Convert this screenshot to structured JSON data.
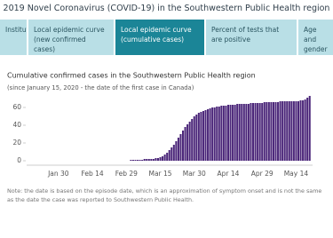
{
  "header": {
    "title": "2019 Novel Coronavirus (COVID-19) in the Southwestern Public Health region"
  },
  "tabs": [
    "Institutional...",
    "Local epidemic curve (new confirmed cases)",
    "Local epidemic curve (cumulative cases)",
    "Percent of tests that are positive",
    "Age and gender d..."
  ],
  "chart_data": {
    "type": "bar",
    "title": "Cumulative confirmed cases in the Southwestern Public Health region",
    "subtitle": "(since January 15, 2020 - the date of the first case in Canada)",
    "color": "#4b2679",
    "categories": [
      null,
      null,
      null,
      null,
      null,
      null,
      null,
      null,
      null,
      null,
      null,
      null,
      "Jan 30",
      null,
      null,
      null,
      null,
      null,
      null,
      null,
      null,
      null,
      null,
      null,
      null,
      null,
      null,
      "Feb 14",
      null,
      null,
      null,
      null,
      null,
      null,
      null,
      null,
      null,
      null,
      null,
      null,
      null,
      null,
      "Feb 29",
      null,
      null,
      null,
      null,
      null,
      null,
      null,
      null,
      null,
      null,
      null,
      null,
      null,
      null,
      "Mar 15",
      null,
      null,
      null,
      null,
      null,
      null,
      null,
      null,
      null,
      null,
      null,
      null,
      null,
      null,
      "Mar 30",
      null,
      null,
      null,
      null,
      null,
      null,
      null,
      null,
      null,
      null,
      null,
      null,
      null,
      null,
      "Apr 14",
      null,
      null,
      null,
      null,
      null,
      null,
      null,
      null,
      null,
      null,
      null,
      null,
      null,
      null,
      "Apr 29",
      null,
      null,
      null,
      null,
      null,
      null,
      null,
      null,
      null,
      null,
      null,
      null,
      null,
      null,
      "May 14",
      null,
      null,
      null,
      null,
      null,
      null
    ],
    "values": [
      null,
      null,
      null,
      null,
      null,
      null,
      null,
      null,
      null,
      null,
      null,
      null,
      null,
      null,
      null,
      null,
      null,
      null,
      null,
      null,
      null,
      null,
      null,
      null,
      null,
      null,
      null,
      null,
      null,
      null,
      null,
      null,
      null,
      null,
      null,
      null,
      null,
      null,
      null,
      null,
      null,
      null,
      null,
      null,
      1,
      1,
      1,
      1,
      1,
      1,
      2,
      2,
      2,
      2,
      2,
      3,
      3,
      4,
      5,
      7,
      9,
      12,
      15,
      18,
      22,
      26,
      30,
      34,
      38,
      41,
      44,
      47,
      50,
      52,
      54,
      55,
      56,
      57,
      58,
      59,
      60,
      60,
      61,
      61,
      62,
      62,
      62,
      63,
      63,
      63,
      63,
      64,
      64,
      64,
      64,
      64,
      64,
      65,
      65,
      65,
      65,
      65,
      65,
      66,
      66,
      66,
      66,
      66,
      66,
      66,
      67,
      67,
      67,
      67,
      67,
      67,
      67,
      67,
      67,
      68,
      68,
      69,
      71,
      73
    ],
    "ylim": [
      -5,
      75
    ],
    "yticks": [
      0,
      20,
      40,
      60
    ]
  },
  "footnote": "Note: the date is based on the episode date, which is an approximation of symptom onset and is not the same as the date the case was reported to Southwestern Public Health."
}
